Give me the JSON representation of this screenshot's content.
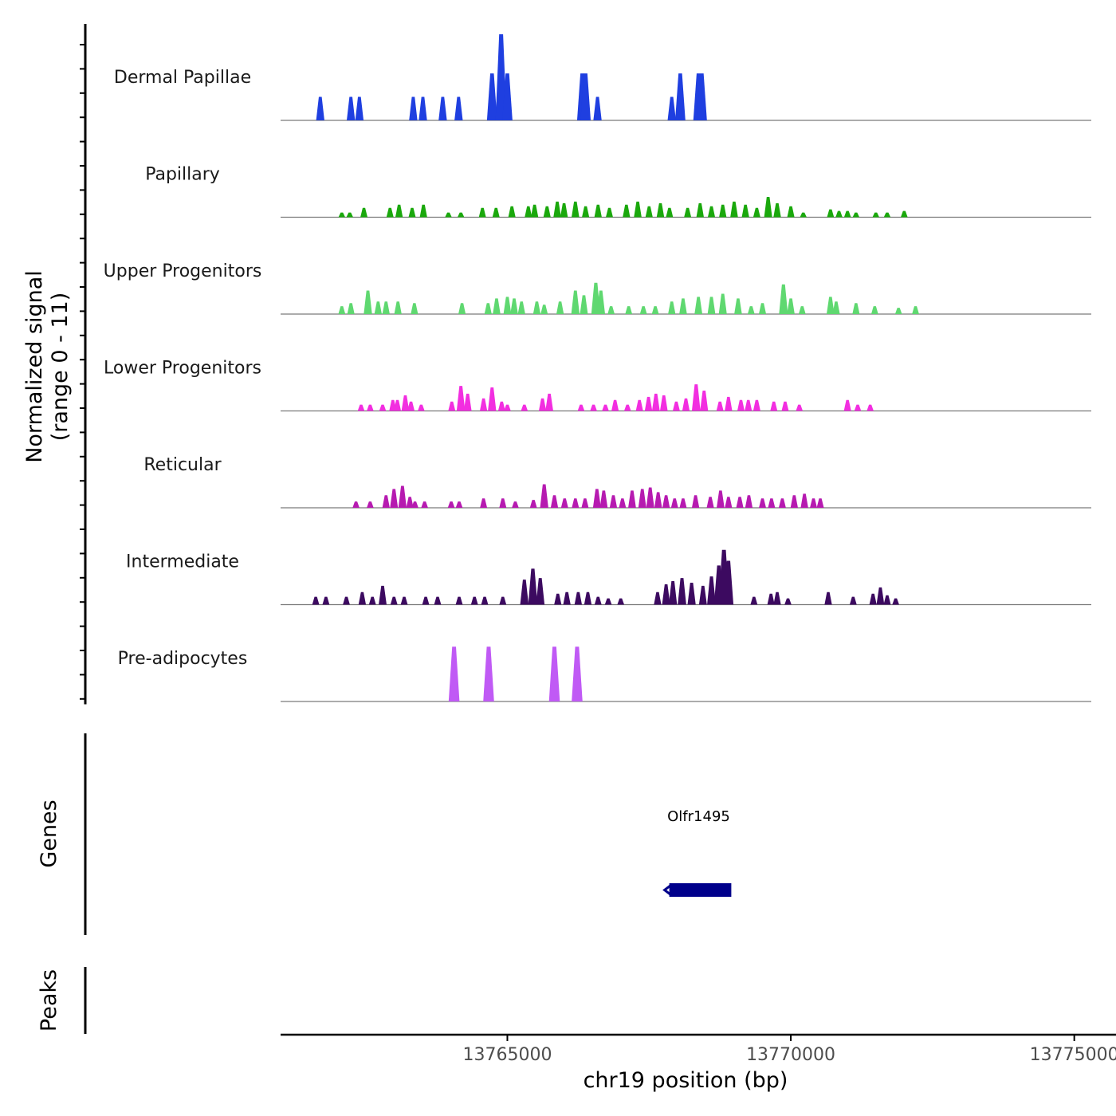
{
  "chart_data": {
    "type": "area",
    "title": "",
    "region": "chr19",
    "xlabel": "chr19 position (bp)",
    "xlim": [
      13761000,
      13775000
    ],
    "x_ticks": [
      13765000,
      13770000,
      13775000
    ],
    "x_tick_labels": [
      "13765000",
      "13770000",
      "13775000"
    ],
    "signal_ylabel_line1": "Normalized signal",
    "signal_ylabel_line2": "(range 0 - 11)",
    "ylim": [
      0,
      11
    ],
    "series": [
      {
        "name": "Dermal Papillae",
        "color": "#1f3fe0",
        "peaks": [
          [
            13761700,
            3
          ],
          [
            13762240,
            3
          ],
          [
            13762390,
            3
          ],
          [
            13763340,
            3
          ],
          [
            13763510,
            3
          ],
          [
            13763860,
            3
          ],
          [
            13764140,
            3
          ],
          [
            13764730,
            6
          ],
          [
            13764890,
            11
          ],
          [
            13765000,
            6
          ],
          [
            13766320,
            6
          ],
          [
            13766380,
            6
          ],
          [
            13766590,
            3
          ],
          [
            13767900,
            3
          ],
          [
            13768050,
            6
          ],
          [
            13768370,
            6
          ],
          [
            13768430,
            6
          ]
        ]
      },
      {
        "name": "Papillary",
        "color": "#1aa80c",
        "peaks": [
          [
            13762080,
            0.6
          ],
          [
            13762220,
            0.6
          ],
          [
            13762470,
            1.2
          ],
          [
            13762930,
            1.2
          ],
          [
            13763090,
            1.6
          ],
          [
            13763320,
            1.2
          ],
          [
            13763520,
            1.6
          ],
          [
            13763960,
            0.6
          ],
          [
            13764180,
            0.6
          ],
          [
            13764560,
            1.2
          ],
          [
            13764800,
            1.2
          ],
          [
            13765080,
            1.4
          ],
          [
            13765370,
            1.4
          ],
          [
            13765480,
            1.6
          ],
          [
            13765700,
            1.4
          ],
          [
            13765880,
            2.0
          ],
          [
            13766000,
            1.8
          ],
          [
            13766200,
            2.0
          ],
          [
            13766380,
            1.4
          ],
          [
            13766600,
            1.6
          ],
          [
            13766800,
            1.2
          ],
          [
            13767100,
            1.6
          ],
          [
            13767300,
            2.0
          ],
          [
            13767500,
            1.4
          ],
          [
            13767700,
            1.8
          ],
          [
            13767860,
            1.2
          ],
          [
            13768180,
            1.2
          ],
          [
            13768400,
            1.8
          ],
          [
            13768600,
            1.4
          ],
          [
            13768800,
            1.6
          ],
          [
            13769000,
            2.0
          ],
          [
            13769200,
            1.6
          ],
          [
            13769400,
            1.2
          ],
          [
            13769600,
            2.6
          ],
          [
            13769760,
            1.8
          ],
          [
            13770000,
            1.4
          ],
          [
            13770220,
            0.6
          ],
          [
            13770700,
            1.0
          ],
          [
            13770850,
            0.8
          ],
          [
            13771000,
            0.8
          ],
          [
            13771150,
            0.6
          ],
          [
            13771500,
            0.6
          ],
          [
            13771700,
            0.6
          ],
          [
            13772000,
            0.8
          ]
        ]
      },
      {
        "name": "Upper Progenitors",
        "color": "#5fd870",
        "peaks": [
          [
            13762080,
            1.0
          ],
          [
            13762240,
            1.4
          ],
          [
            13762540,
            3.0
          ],
          [
            13762720,
            1.6
          ],
          [
            13762860,
            1.6
          ],
          [
            13763070,
            1.6
          ],
          [
            13763360,
            1.4
          ],
          [
            13764200,
            1.4
          ],
          [
            13764660,
            1.4
          ],
          [
            13764810,
            2.0
          ],
          [
            13765000,
            2.2
          ],
          [
            13765120,
            2.0
          ],
          [
            13765250,
            1.6
          ],
          [
            13765520,
            1.6
          ],
          [
            13765650,
            1.2
          ],
          [
            13765930,
            1.6
          ],
          [
            13766200,
            3.0
          ],
          [
            13766350,
            2.4
          ],
          [
            13766560,
            4.0
          ],
          [
            13766650,
            3.0
          ],
          [
            13766830,
            1.0
          ],
          [
            13767140,
            1.0
          ],
          [
            13767400,
            1.0
          ],
          [
            13767610,
            1.0
          ],
          [
            13767900,
            1.6
          ],
          [
            13768100,
            2.0
          ],
          [
            13768370,
            2.2
          ],
          [
            13768600,
            2.2
          ],
          [
            13768800,
            2.6
          ],
          [
            13769070,
            2.0
          ],
          [
            13769300,
            1.0
          ],
          [
            13769500,
            1.4
          ],
          [
            13769870,
            3.8
          ],
          [
            13770000,
            2.0
          ],
          [
            13770200,
            1.0
          ],
          [
            13770700,
            2.2
          ],
          [
            13770800,
            1.6
          ],
          [
            13771150,
            1.4
          ],
          [
            13771480,
            1.0
          ],
          [
            13771900,
            0.8
          ],
          [
            13772200,
            1.0
          ]
        ]
      },
      {
        "name": "Lower Progenitors",
        "color": "#f22ee0",
        "peaks": [
          [
            13762420,
            0.8
          ],
          [
            13762580,
            0.8
          ],
          [
            13762800,
            0.8
          ],
          [
            13762980,
            1.4
          ],
          [
            13763060,
            1.4
          ],
          [
            13763200,
            2.0
          ],
          [
            13763300,
            1.2
          ],
          [
            13763480,
            0.8
          ],
          [
            13764020,
            1.2
          ],
          [
            13764180,
            3.2
          ],
          [
            13764300,
            2.2
          ],
          [
            13764580,
            1.6
          ],
          [
            13764730,
            3.0
          ],
          [
            13764900,
            1.2
          ],
          [
            13765000,
            0.8
          ],
          [
            13765300,
            0.8
          ],
          [
            13765620,
            1.6
          ],
          [
            13765740,
            2.2
          ],
          [
            13766300,
            0.8
          ],
          [
            13766520,
            0.8
          ],
          [
            13766730,
            0.8
          ],
          [
            13766900,
            1.4
          ],
          [
            13767120,
            0.8
          ],
          [
            13767330,
            1.4
          ],
          [
            13767490,
            1.8
          ],
          [
            13767620,
            2.2
          ],
          [
            13767760,
            2.0
          ],
          [
            13767980,
            1.2
          ],
          [
            13768150,
            1.6
          ],
          [
            13768330,
            3.4
          ],
          [
            13768470,
            2.6
          ],
          [
            13768750,
            1.2
          ],
          [
            13768900,
            1.8
          ],
          [
            13769120,
            1.4
          ],
          [
            13769250,
            1.4
          ],
          [
            13769400,
            1.4
          ],
          [
            13769700,
            1.2
          ],
          [
            13769900,
            1.2
          ],
          [
            13770150,
            0.8
          ],
          [
            13771000,
            1.4
          ],
          [
            13771180,
            0.8
          ],
          [
            13771400,
            0.8
          ]
        ]
      },
      {
        "name": "Reticular",
        "color": "#b61ab0",
        "peaks": [
          [
            13762330,
            0.8
          ],
          [
            13762580,
            0.8
          ],
          [
            13762860,
            1.6
          ],
          [
            13763000,
            2.4
          ],
          [
            13763150,
            2.8
          ],
          [
            13763280,
            1.4
          ],
          [
            13763370,
            0.8
          ],
          [
            13763540,
            0.8
          ],
          [
            13764010,
            0.8
          ],
          [
            13764150,
            0.8
          ],
          [
            13764580,
            1.2
          ],
          [
            13764920,
            1.2
          ],
          [
            13765140,
            0.8
          ],
          [
            13765460,
            1.0
          ],
          [
            13765650,
            3.0
          ],
          [
            13765830,
            1.6
          ],
          [
            13766010,
            1.2
          ],
          [
            13766200,
            1.2
          ],
          [
            13766370,
            1.2
          ],
          [
            13766580,
            2.4
          ],
          [
            13766700,
            2.2
          ],
          [
            13766870,
            1.6
          ],
          [
            13767030,
            1.2
          ],
          [
            13767200,
            2.2
          ],
          [
            13767380,
            2.4
          ],
          [
            13767520,
            2.6
          ],
          [
            13767660,
            2.0
          ],
          [
            13767800,
            1.6
          ],
          [
            13767950,
            1.2
          ],
          [
            13768100,
            1.2
          ],
          [
            13768320,
            1.6
          ],
          [
            13768580,
            1.4
          ],
          [
            13768760,
            2.2
          ],
          [
            13768900,
            1.4
          ],
          [
            13769100,
            1.4
          ],
          [
            13769260,
            1.6
          ],
          [
            13769500,
            1.2
          ],
          [
            13769660,
            1.2
          ],
          [
            13769850,
            1.2
          ],
          [
            13770060,
            1.6
          ],
          [
            13770240,
            1.8
          ],
          [
            13770400,
            1.2
          ],
          [
            13770520,
            1.2
          ]
        ]
      },
      {
        "name": "Intermediate",
        "color": "#3c0a60",
        "peaks": [
          [
            13761620,
            1.0
          ],
          [
            13761800,
            1.0
          ],
          [
            13762160,
            1.0
          ],
          [
            13762440,
            1.6
          ],
          [
            13762620,
            1.0
          ],
          [
            13762800,
            2.4
          ],
          [
            13763000,
            1.0
          ],
          [
            13763180,
            1.0
          ],
          [
            13763560,
            1.0
          ],
          [
            13763770,
            1.0
          ],
          [
            13764150,
            1.0
          ],
          [
            13764420,
            1.0
          ],
          [
            13764600,
            1.0
          ],
          [
            13764920,
            1.0
          ],
          [
            13765300,
            3.2
          ],
          [
            13765450,
            4.6
          ],
          [
            13765580,
            3.4
          ],
          [
            13765890,
            1.4
          ],
          [
            13766050,
            1.6
          ],
          [
            13766250,
            1.6
          ],
          [
            13766420,
            1.6
          ],
          [
            13766600,
            1.0
          ],
          [
            13766780,
            0.8
          ],
          [
            13767000,
            0.8
          ],
          [
            13767650,
            1.6
          ],
          [
            13767800,
            2.6
          ],
          [
            13767920,
            3.0
          ],
          [
            13768080,
            3.4
          ],
          [
            13768250,
            2.8
          ],
          [
            13768450,
            2.4
          ],
          [
            13768600,
            3.6
          ],
          [
            13768730,
            5.0
          ],
          [
            13768820,
            7.0
          ],
          [
            13768900,
            5.6
          ],
          [
            13769350,
            1.0
          ],
          [
            13769650,
            1.4
          ],
          [
            13769760,
            1.6
          ],
          [
            13769950,
            0.8
          ],
          [
            13770660,
            1.6
          ],
          [
            13771100,
            1.0
          ],
          [
            13771450,
            1.4
          ],
          [
            13771580,
            2.2
          ],
          [
            13771700,
            1.2
          ],
          [
            13771850,
            0.8
          ]
        ]
      },
      {
        "name": "Pre-adipocytes",
        "color": "#c05af5",
        "peaks": [
          [
            13764060,
            7
          ],
          [
            13764670,
            7
          ],
          [
            13765830,
            7
          ],
          [
            13766230,
            7
          ]
        ]
      }
    ],
    "genes_label": "Genes",
    "genes": [
      {
        "name": "Olfr1495",
        "start": 13767800,
        "end": 13768950,
        "strand": "-",
        "color": "#00008b"
      }
    ],
    "peaks_label": "Peaks",
    "peak_regions": []
  }
}
